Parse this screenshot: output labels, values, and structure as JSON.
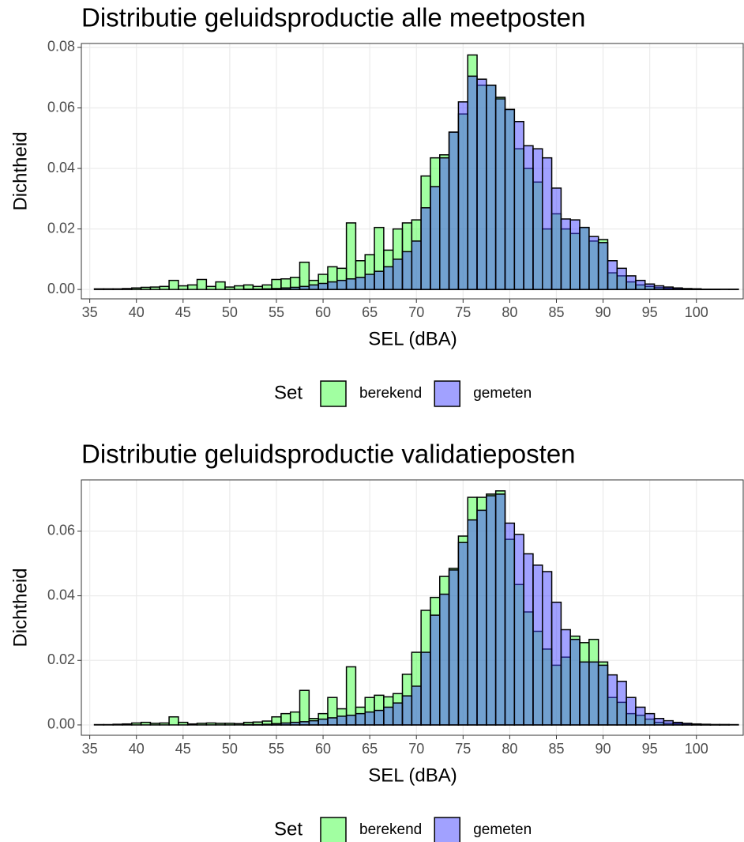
{
  "chart_data": [
    {
      "type": "histogram",
      "title": "Distributie geluidsproductie alle meetposten",
      "xlabel": "SEL (dBA)",
      "ylabel": "Dichtheid",
      "legend_title": "Set",
      "legend": "bottom",
      "grid": true,
      "bins": [
        35.5,
        36.5,
        37.5,
        38.5,
        39.5,
        40.5,
        41.5,
        42.5,
        43.5,
        44.5,
        45.5,
        46.5,
        47.5,
        48.5,
        49.5,
        50.5,
        51.5,
        52.5,
        53.5,
        54.5,
        55.5,
        56.5,
        57.5,
        58.5,
        59.5,
        60.5,
        61.5,
        62.5,
        63.5,
        64.5,
        65.5,
        66.5,
        67.5,
        68.5,
        69.5,
        70.5,
        71.5,
        72.5,
        73.5,
        74.5,
        75.5,
        76.5,
        77.5,
        78.5,
        79.5,
        80.5,
        81.5,
        82.5,
        83.5,
        84.5,
        85.5,
        86.5,
        87.5,
        88.5,
        89.5,
        90.5,
        91.5,
        92.5,
        93.5,
        94.5,
        95.5,
        96.5,
        97.5,
        98.5,
        99.5,
        100.5,
        101.5,
        102.5,
        103.5,
        104.5
      ],
      "series": [
        {
          "name": "berekend",
          "color": "#44ff44",
          "values": [
            0.0002,
            0.0002,
            0.0002,
            0.0003,
            0.0005,
            0.0007,
            0.0008,
            0.001,
            0.003,
            0.0012,
            0.0015,
            0.0033,
            0.001,
            0.0025,
            0.0008,
            0.0012,
            0.0015,
            0.001,
            0.0015,
            0.0033,
            0.0035,
            0.004,
            0.009,
            0.003,
            0.005,
            0.0075,
            0.007,
            0.022,
            0.0095,
            0.0115,
            0.0205,
            0.013,
            0.02,
            0.022,
            0.023,
            0.0375,
            0.0435,
            0.0445,
            0.052,
            0.058,
            0.0775,
            0.0675,
            0.0675,
            0.0635,
            0.0595,
            0.0465,
            0.04,
            0.0355,
            0.02,
            0.025,
            0.02,
            0.0185,
            0.0205,
            0.016,
            0.0165,
            0.0055,
            0.0045,
            0.0025,
            0.0015,
            0.001,
            0.0006,
            0.0004,
            0.0003,
            0.0002,
            0.0002,
            0.0001,
            0.0001,
            0.0001,
            0.0001
          ]
        },
        {
          "name": "gemeten",
          "color": "#4444ff",
          "values": [
            0,
            0,
            0,
            0,
            0,
            0,
            0,
            0,
            0,
            0,
            0,
            0,
            0,
            0,
            0,
            0,
            0.0001,
            0.0001,
            0.0002,
            0.0003,
            0.0005,
            0.0007,
            0.001,
            0.0015,
            0.002,
            0.0025,
            0.003,
            0.0035,
            0.004,
            0.005,
            0.006,
            0.0075,
            0.01,
            0.0125,
            0.016,
            0.027,
            0.034,
            0.0435,
            0.052,
            0.062,
            0.0705,
            0.0695,
            0.0675,
            0.063,
            0.0595,
            0.0555,
            0.0475,
            0.0465,
            0.0435,
            0.0335,
            0.0233,
            0.023,
            0.0205,
            0.0175,
            0.0155,
            0.0095,
            0.007,
            0.0045,
            0.003,
            0.0018,
            0.0012,
            0.0008,
            0.0005,
            0.0003,
            0.0002,
            0.0001,
            0.0001,
            0,
            0
          ]
        }
      ],
      "xlim": [
        34.1,
        105.1
      ],
      "xticks": [
        35,
        40,
        45,
        50,
        55,
        60,
        65,
        70,
        75,
        80,
        85,
        90,
        95,
        100
      ],
      "ylim": [
        -0.0031,
        0.0813
      ],
      "yticks": [
        {
          "value": 0,
          "label": "0.00"
        },
        {
          "value": 0.02,
          "label": "0.02"
        },
        {
          "value": 0.04,
          "label": "0.04"
        },
        {
          "value": 0.06,
          "label": "0.06"
        },
        {
          "value": 0.08,
          "label": "0.08"
        }
      ]
    },
    {
      "type": "histogram",
      "title": "Distributie geluidsproductie validatieposten",
      "xlabel": "SEL (dBA)",
      "ylabel": "Dichtheid",
      "legend_title": "Set",
      "legend": "bottom",
      "grid": true,
      "bins": [
        35.5,
        36.5,
        37.5,
        38.5,
        39.5,
        40.5,
        41.5,
        42.5,
        43.5,
        44.5,
        45.5,
        46.5,
        47.5,
        48.5,
        49.5,
        50.5,
        51.5,
        52.5,
        53.5,
        54.5,
        55.5,
        56.5,
        57.5,
        58.5,
        59.5,
        60.5,
        61.5,
        62.5,
        63.5,
        64.5,
        65.5,
        66.5,
        67.5,
        68.5,
        69.5,
        70.5,
        71.5,
        72.5,
        73.5,
        74.5,
        75.5,
        76.5,
        77.5,
        78.5,
        79.5,
        80.5,
        81.5,
        82.5,
        83.5,
        84.5,
        85.5,
        86.5,
        87.5,
        88.5,
        89.5,
        90.5,
        91.5,
        92.5,
        93.5,
        94.5,
        95.5,
        96.5,
        97.5,
        98.5,
        99.5,
        100.5,
        101.5,
        102.5,
        103.5,
        104.5
      ],
      "series": [
        {
          "name": "berekend",
          "color": "#44ff44",
          "values": [
            0.0001,
            0.0001,
            0.0002,
            0.0003,
            0.0006,
            0.0008,
            0.0005,
            0.0006,
            0.0025,
            0.0008,
            0.0003,
            0.0005,
            0.0006,
            0.0005,
            0.0005,
            0.0004,
            0.0008,
            0.0009,
            0.0012,
            0.0025,
            0.0035,
            0.004,
            0.0107,
            0.002,
            0.0035,
            0.0085,
            0.005,
            0.018,
            0.0055,
            0.0085,
            0.0092,
            0.0087,
            0.0097,
            0.0157,
            0.0225,
            0.0355,
            0.0395,
            0.046,
            0.0485,
            0.0585,
            0.0705,
            0.0705,
            0.0715,
            0.0725,
            0.0575,
            0.0435,
            0.035,
            0.029,
            0.0235,
            0.0185,
            0.021,
            0.0275,
            0.0255,
            0.0265,
            0.0195,
            0.0085,
            0.007,
            0.0035,
            0.003,
            0.0018,
            0.0008,
            0.0005,
            0.0004,
            0.0003,
            0.0002,
            0.0001,
            0.0001,
            0.0001,
            0.0001
          ]
        },
        {
          "name": "gemeten",
          "color": "#4444ff",
          "values": [
            0,
            0,
            0,
            0,
            0,
            0,
            0,
            0,
            0,
            0,
            0,
            0,
            0,
            0,
            0,
            0,
            0.0001,
            0.0001,
            0.0002,
            0.0004,
            0.0006,
            0.0008,
            0.001,
            0.0013,
            0.0018,
            0.0022,
            0.0027,
            0.003,
            0.0035,
            0.004,
            0.0045,
            0.0055,
            0.0068,
            0.009,
            0.012,
            0.0225,
            0.034,
            0.0405,
            0.048,
            0.0565,
            0.0635,
            0.0665,
            0.071,
            0.0715,
            0.0625,
            0.059,
            0.053,
            0.0495,
            0.0475,
            0.038,
            0.0295,
            0.0265,
            0.0195,
            0.0195,
            0.0185,
            0.0155,
            0.0135,
            0.0085,
            0.0055,
            0.0035,
            0.002,
            0.0013,
            0.0008,
            0.0005,
            0.0003,
            0.0002,
            0.0001,
            0.0001,
            0
          ]
        }
      ],
      "xlim": [
        34.1,
        105.1
      ],
      "xticks": [
        35,
        40,
        45,
        50,
        55,
        60,
        65,
        70,
        75,
        80,
        85,
        90,
        95,
        100
      ],
      "ylim": [
        -0.0032,
        0.0759
      ],
      "yticks": [
        {
          "value": 0,
          "label": "0.00"
        },
        {
          "value": 0.02,
          "label": "0.02"
        },
        {
          "value": 0.04,
          "label": "0.04"
        },
        {
          "value": 0.06,
          "label": "0.06"
        }
      ]
    }
  ]
}
